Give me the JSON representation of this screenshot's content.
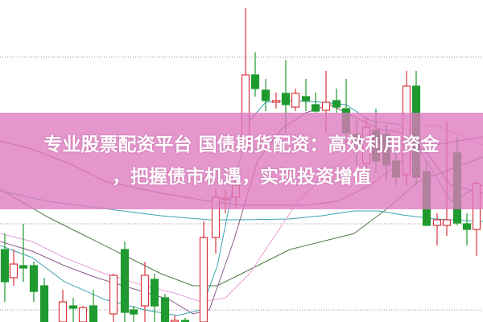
{
  "headline": {
    "line1": "专业股票配资平台 国债期货配资：高效利用资金",
    "line2": "，把握债市机遇，实现投资增值"
  },
  "colors": {
    "rise": "#d9363e",
    "fall": "#1f9a2f",
    "banner": "#de78be",
    "ma_short": "#3aa6b0",
    "ma_mid": "#8b5a8b",
    "ma_long": "#4e7d45",
    "ma_pink": "#e6a0d8"
  }
}
